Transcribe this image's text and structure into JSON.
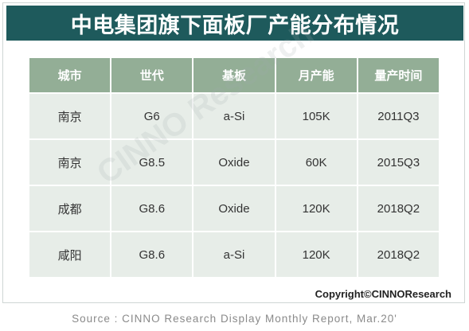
{
  "title": "中电集团旗下面板厂产能分布情况",
  "table": {
    "headers": [
      "城市",
      "世代",
      "基板",
      "月产能",
      "量产时间"
    ],
    "rows": [
      [
        "南京",
        "G6",
        "a-Si",
        "105K",
        "2011Q3"
      ],
      [
        "南京",
        "G8.5",
        "Oxide",
        "60K",
        "2015Q3"
      ],
      [
        "成都",
        "G8.6",
        "Oxide",
        "120K",
        "2018Q2"
      ],
      [
        "咸阳",
        "G8.6",
        "a-Si",
        "120K",
        "2018Q2"
      ]
    ]
  },
  "watermark": "CINNO Research",
  "copyright": "Copyright©CINNOResearch",
  "source": "Source : CINNO Research Display Monthly Report, Mar.20'",
  "colors": {
    "title_bg": "#1e5a5c",
    "header_bg": "#93ae96",
    "cell_bg": "#e7ede8"
  }
}
